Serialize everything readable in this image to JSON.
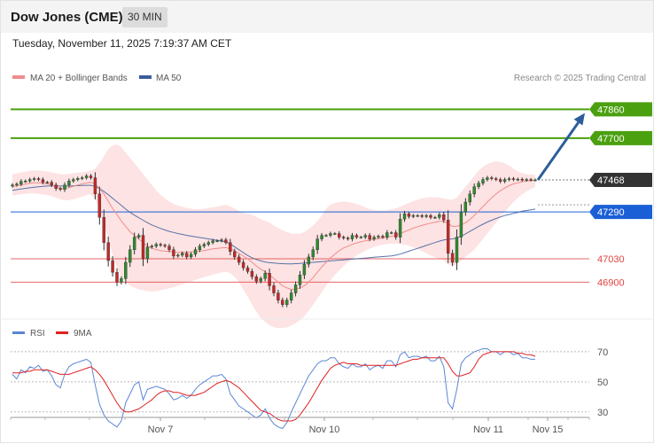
{
  "header": {
    "title": "Dow Jones (CME)",
    "timeframe": "30 MIN"
  },
  "timestamp": "Tuesday, November 11, 2025 7:19:37 AM CET",
  "watermark": "Research © 2025 Trading Central",
  "colors": {
    "bullish_line": "#4aa00f",
    "pivot_label": "#333333",
    "current_level": "#1b5fd6",
    "support": "#e24242",
    "arrow": "#2c5d9c",
    "ma20": "#f08c8c",
    "ma50": "#3a5d9c",
    "bollinger_fill": "#fde3e3",
    "candle_up": "#2e8b2e",
    "candle_down": "#c62828",
    "rsi_line": "#5b86d6",
    "rsi_ma": "#e02020"
  },
  "chart_data": [
    {
      "type": "candlestick",
      "legend": [
        {
          "label": "MA 20 + Bollinger Bands",
          "color": "#f08c8c"
        },
        {
          "label": "MA 50",
          "color": "#3a5d9c"
        }
      ],
      "ylim": [
        46700,
        47980
      ],
      "levels": [
        {
          "value": 47860,
          "label": "47860",
          "style": "target",
          "color": "#4aa00f"
        },
        {
          "value": 47700,
          "label": "47700",
          "style": "target",
          "color": "#4aa00f"
        },
        {
          "value": 47468,
          "label": "47468",
          "style": "pivot",
          "color": "#333333"
        },
        {
          "value": 47290,
          "label": "47290",
          "style": "current",
          "color": "#1b5fd6"
        },
        {
          "value": 47030,
          "label": "47030",
          "style": "support",
          "color": "#e24242"
        },
        {
          "value": 46900,
          "label": "46900",
          "style": "support",
          "color": "#e24242"
        }
      ],
      "forecast_arrow": {
        "from": 47468,
        "to": 47840
      },
      "close": [
        47440,
        47445,
        47460,
        47462,
        47470,
        47475,
        47470,
        47455,
        47455,
        47440,
        47420,
        47415,
        47440,
        47462,
        47470,
        47476,
        47480,
        47490,
        47480,
        47390,
        47260,
        47120,
        47020,
        46955,
        46900,
        46920,
        47010,
        47080,
        47150,
        47160,
        47030,
        47095,
        47100,
        47110,
        47105,
        47100,
        47080,
        47045,
        47050,
        47060,
        47040,
        47055,
        47080,
        47100,
        47110,
        47120,
        47130,
        47130,
        47135,
        47120,
        47070,
        47040,
        47010,
        46980,
        46960,
        46930,
        46905,
        46920,
        46950,
        46880,
        46840,
        46800,
        46775,
        46800,
        46840,
        46885,
        46940,
        47000,
        47040,
        47080,
        47140,
        47160,
        47160,
        47170,
        47170,
        47150,
        47145,
        47140,
        47160,
        47150,
        47150,
        47160,
        47140,
        47150,
        47155,
        47150,
        47175,
        47175,
        47150,
        47250,
        47280,
        47265,
        47270,
        47270,
        47265,
        47270,
        47260,
        47260,
        47275,
        47245,
        47060,
        47010,
        47150,
        47290,
        47345,
        47390,
        47430,
        47450,
        47470,
        47480,
        47475,
        47470,
        47460,
        47470,
        47475,
        47470,
        47472,
        47468,
        47470,
        47468,
        47468
      ],
      "ma20": [
        47430,
        47436,
        47440,
        47445,
        47450,
        47452,
        47452,
        47450,
        47446,
        47440,
        47430,
        47420,
        47420,
        47425,
        47432,
        47440,
        47446,
        47451,
        47455,
        47445,
        47420,
        47390,
        47350,
        47310,
        47275,
        47240,
        47210,
        47180,
        47160,
        47140,
        47120,
        47100,
        47088,
        47080,
        47075,
        47072,
        47070,
        47068,
        47066,
        47066,
        47066,
        47068,
        47070,
        47072,
        47075,
        47080,
        47085,
        47088,
        47090,
        47092,
        47085,
        47075,
        47060,
        47045,
        47030,
        47010,
        46990,
        46972,
        46958,
        46940,
        46920,
        46900,
        46880,
        46868,
        46860,
        46860,
        46868,
        46880,
        46900,
        46925,
        46955,
        46985,
        47010,
        47035,
        47055,
        47075,
        47090,
        47100,
        47110,
        47118,
        47124,
        47130,
        47134,
        47138,
        47142,
        47146,
        47150,
        47155,
        47160,
        47170,
        47180,
        47190,
        47200,
        47208,
        47215,
        47222,
        47228,
        47233,
        47238,
        47238,
        47225,
        47210,
        47210,
        47218,
        47230,
        47248,
        47270,
        47295,
        47320,
        47345,
        47368,
        47390,
        47408,
        47423,
        47436,
        47446,
        47452,
        47458,
        47462,
        47464,
        47466
      ],
      "ma50": [
        47410,
        47414,
        47418,
        47421,
        47424,
        47427,
        47430,
        47432,
        47434,
        47435,
        47435,
        47434,
        47434,
        47434,
        47435,
        47436,
        47437,
        47438,
        47438,
        47432,
        47420,
        47404,
        47386,
        47366,
        47346,
        47326,
        47306,
        47288,
        47272,
        47258,
        47244,
        47230,
        47218,
        47208,
        47198,
        47190,
        47182,
        47176,
        47170,
        47165,
        47160,
        47156,
        47152,
        47148,
        47144,
        47140,
        47136,
        47132,
        47128,
        47124,
        47112,
        47096,
        47080,
        47064,
        47048,
        47036,
        47026,
        47018,
        47012,
        47008,
        47006,
        47004,
        47003,
        47002,
        47002,
        47003,
        47004,
        47006,
        47008,
        47010,
        47012,
        47014,
        47016,
        47018,
        47020,
        47022,
        47024,
        47026,
        47028,
        47030,
        47032,
        47034,
        47036,
        47038,
        47040,
        47042,
        47044,
        47046,
        47050,
        47056,
        47064,
        47072,
        47080,
        47088,
        47096,
        47104,
        47112,
        47120,
        47128,
        47134,
        47138,
        47140,
        47146,
        47156,
        47168,
        47182,
        47196,
        47210,
        47222,
        47234,
        47244,
        47254,
        47262,
        47270,
        47276,
        47282,
        47288,
        47294,
        47298,
        47302,
        47306
      ],
      "bb_upper": [
        47500,
        47505,
        47510,
        47514,
        47518,
        47520,
        47520,
        47518,
        47515,
        47510,
        47505,
        47500,
        47500,
        47502,
        47505,
        47508,
        47511,
        47514,
        47520,
        47530,
        47560,
        47600,
        47640,
        47660,
        47665,
        47650,
        47620,
        47590,
        47560,
        47530,
        47500,
        47470,
        47440,
        47410,
        47385,
        47365,
        47348,
        47335,
        47325,
        47318,
        47312,
        47308,
        47306,
        47306,
        47308,
        47312,
        47316,
        47320,
        47325,
        47330,
        47320,
        47310,
        47295,
        47285,
        47280,
        47275,
        47262,
        47250,
        47240,
        47230,
        47215,
        47200,
        47188,
        47178,
        47170,
        47168,
        47170,
        47178,
        47195,
        47215,
        47240,
        47270,
        47310,
        47330,
        47340,
        47345,
        47348,
        47345,
        47340,
        47335,
        47325,
        47315,
        47305,
        47300,
        47298,
        47298,
        47300,
        47305,
        47310,
        47320,
        47330,
        47340,
        47350,
        47358,
        47365,
        47370,
        47372,
        47372,
        47370,
        47365,
        47360,
        47358,
        47370,
        47400,
        47430,
        47460,
        47490,
        47520,
        47540,
        47555,
        47565,
        47570,
        47568,
        47560,
        47548,
        47530,
        47515,
        47505,
        47500,
        47498,
        47496
      ],
      "bb_lower": [
        47380,
        47385,
        47388,
        47390,
        47392,
        47392,
        47390,
        47387,
        47383,
        47378,
        47370,
        47360,
        47355,
        47355,
        47360,
        47368,
        47376,
        47384,
        47388,
        47360,
        47300,
        47220,
        47140,
        47050,
        46980,
        46930,
        46900,
        46880,
        46870,
        46860,
        46855,
        46850,
        46848,
        46850,
        46855,
        46860,
        46866,
        46872,
        46880,
        46888,
        46896,
        46904,
        46912,
        46920,
        46928,
        46935,
        46942,
        46948,
        46954,
        46958,
        46950,
        46930,
        46900,
        46860,
        46820,
        46775,
        46735,
        46700,
        46680,
        46660,
        46650,
        46645,
        46645,
        46650,
        46660,
        46672,
        46690,
        46710,
        46740,
        46775,
        46810,
        46845,
        46880,
        46910,
        46940,
        46965,
        46990,
        47010,
        47030,
        47048,
        47062,
        47075,
        47086,
        47095,
        47102,
        47108,
        47112,
        47114,
        47114,
        47112,
        47108,
        47102,
        47094,
        47084,
        47072,
        47060,
        47048,
        47038,
        47030,
        47020,
        47000,
        46990,
        47000,
        47020,
        47040,
        47060,
        47080,
        47110,
        47140,
        47170,
        47200,
        47230,
        47260,
        47290,
        47318,
        47345,
        47368,
        47388,
        47404,
        47418,
        47430
      ]
    },
    {
      "type": "line",
      "legend": [
        {
          "label": "RSI",
          "color": "#5b86d6"
        },
        {
          "label": "9MA",
          "color": "#e02020"
        }
      ],
      "ylim": [
        24,
        77
      ],
      "yticks": [
        70,
        50,
        30
      ],
      "xticks": [
        "Nov 7",
        "Nov 10",
        "Nov 11",
        "Nov 15"
      ],
      "series": [
        {
          "name": "RSI",
          "values": [
            55,
            52,
            58,
            56,
            60,
            59,
            61,
            57,
            58,
            54,
            48,
            46,
            55,
            60,
            62,
            63,
            64,
            65,
            63,
            48,
            35,
            28,
            24,
            22,
            20,
            24,
            36,
            42,
            48,
            50,
            38,
            45,
            46,
            47,
            46,
            45,
            42,
            38,
            39,
            41,
            39,
            41,
            45,
            48,
            50,
            52,
            54,
            54,
            55,
            52,
            42,
            38,
            34,
            32,
            30,
            28,
            26,
            28,
            32,
            26,
            22,
            20,
            19,
            23,
            30,
            36,
            42,
            48,
            54,
            58,
            62,
            64,
            64,
            66,
            66,
            62,
            60,
            59,
            62,
            60,
            60,
            62,
            58,
            60,
            61,
            59,
            64,
            64,
            60,
            68,
            70,
            66,
            67,
            67,
            66,
            67,
            64,
            64,
            67,
            60,
            36,
            32,
            45,
            62,
            66,
            68,
            70,
            71,
            72,
            72,
            70,
            70,
            68,
            70,
            70,
            68,
            69,
            66,
            66,
            65,
            65
          ]
        },
        {
          "name": "9MA",
          "values": [
            56,
            56,
            56,
            57,
            57,
            58,
            58,
            58,
            58,
            57,
            56,
            55,
            55,
            55,
            56,
            57,
            58,
            59,
            60,
            58,
            55,
            51,
            46,
            41,
            36,
            32,
            30,
            30,
            31,
            32,
            34,
            36,
            38,
            41,
            43,
            44,
            44,
            43,
            43,
            42,
            41,
            41,
            41,
            42,
            43,
            45,
            47,
            49,
            50,
            51,
            50,
            48,
            46,
            43,
            40,
            37,
            34,
            31,
            30,
            29,
            27,
            25,
            24,
            24,
            24,
            25,
            28,
            32,
            36,
            41,
            46,
            51,
            55,
            59,
            61,
            62,
            63,
            62,
            62,
            62,
            61,
            61,
            61,
            61,
            61,
            61,
            61,
            61,
            61,
            62,
            63,
            64,
            65,
            65,
            66,
            66,
            66,
            66,
            66,
            66,
            62,
            57,
            54,
            54,
            55,
            56,
            60,
            65,
            68,
            69,
            70,
            70,
            70,
            70,
            70,
            70,
            69,
            69,
            68,
            68,
            67
          ]
        }
      ]
    }
  ]
}
